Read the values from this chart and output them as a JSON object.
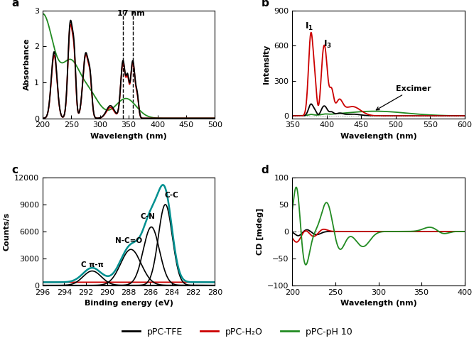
{
  "panel_a": {
    "title": "a",
    "xlabel": "Wavelength (nm)",
    "ylabel": "Absorbance",
    "xlim": [
      200,
      500
    ],
    "ylim": [
      0,
      3
    ],
    "yticks": [
      0,
      1,
      2,
      3
    ],
    "annotation": "17 nm",
    "dashed_lines": [
      340,
      357
    ],
    "colors": {
      "black": "#000000",
      "red": "#cc0000",
      "green": "#228B22"
    }
  },
  "panel_b": {
    "title": "b",
    "xlabel": "Wavelength (nm)",
    "ylabel": "Intensity",
    "xlim": [
      350,
      600
    ],
    "ylim": [
      -20,
      900
    ],
    "yticks": [
      0,
      300,
      600,
      900
    ],
    "label_excimer": "Excimer",
    "colors": {
      "black": "#000000",
      "red": "#cc0000",
      "green": "#228B22"
    }
  },
  "panel_c": {
    "title": "c",
    "xlabel": "Binding energy (eV)",
    "ylabel": "Counts/s",
    "xlim": [
      296,
      280
    ],
    "ylim": [
      0,
      12000
    ],
    "yticks": [
      0,
      3000,
      6000,
      9000,
      12000
    ],
    "xticks": [
      296,
      294,
      292,
      290,
      288,
      286,
      284,
      282,
      280
    ],
    "labels": {
      "pi_pi": "C π-π",
      "nco": "N-C=O",
      "cn": "C-N",
      "cc": "C-C"
    },
    "colors": {
      "teal": "#009090",
      "red": "#cc0000",
      "black": "#000000"
    }
  },
  "panel_d": {
    "title": "d",
    "xlabel": "Wavelength (nm)",
    "ylabel": "CD [mdeg]",
    "xlim": [
      200,
      400
    ],
    "ylim": [
      -100,
      100
    ],
    "yticks": [
      -100,
      -50,
      0,
      50,
      100
    ],
    "colors": {
      "black": "#000000",
      "red": "#cc0000",
      "green": "#228B22"
    }
  },
  "legend": {
    "labels": [
      "pPC-TFE",
      "pPC-H₂O",
      "pPC-pH 10"
    ],
    "colors": [
      "#000000",
      "#cc0000",
      "#228B22"
    ]
  },
  "figure_bgcolor": "#ffffff"
}
